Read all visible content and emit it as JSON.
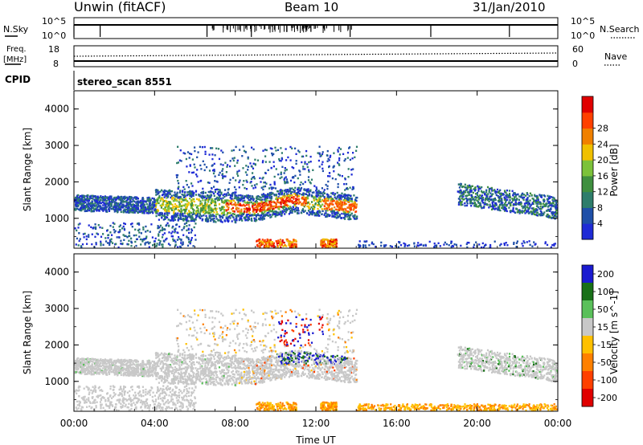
{
  "header": {
    "site": "Unwin (fitACF)",
    "beam": "Beam 10",
    "date": "31/Jan/2010"
  },
  "nsky_panel": {
    "left_label": "N.Sky",
    "right_label": "N.Search",
    "ticks_left": [
      "10^5",
      "10^0"
    ],
    "ticks_right": [
      "10^5",
      "10^0"
    ]
  },
  "freq_panel": {
    "left_label_1": "Freq.",
    "left_label_2": "[MHz]",
    "right_label": "Nave",
    "ticks_left": [
      "18",
      "8"
    ],
    "ticks_right": [
      "60",
      "0"
    ]
  },
  "cpid_panel": {
    "label": "CPID",
    "value": "stereo_scan 8551"
  },
  "chart_data": [
    {
      "type": "heatmap",
      "name": "power",
      "xlabel": "",
      "ylabel": "Slant Range [km]",
      "x_ticks": [
        "00:00",
        "04:00",
        "08:00",
        "12:00",
        "16:00",
        "20:00",
        "00:00"
      ],
      "y_ticks": [
        "1000",
        "2000",
        "3000",
        "4000"
      ],
      "xlim": [
        0,
        24
      ],
      "ylim": [
        180,
        4500
      ],
      "colorbar": {
        "label": "Power [dB]",
        "ticks": [
          "4",
          "8",
          "12",
          "16",
          "20",
          "24",
          "28"
        ],
        "range": [
          0,
          30
        ]
      },
      "regions": [
        {
          "t": [
            0.1,
            9.0
          ],
          "r": [
            1150,
            1700
          ],
          "level": "mixed-low"
        },
        {
          "t": [
            4.0,
            14.0
          ],
          "r": [
            900,
            1750
          ],
          "level": "mid"
        },
        {
          "t": [
            8.0,
            11.5
          ],
          "r": [
            1100,
            1700
          ],
          "level": "high"
        },
        {
          "t": [
            9.0,
            11.0
          ],
          "r": [
            180,
            450
          ],
          "level": "high"
        },
        {
          "t": [
            12.0,
            14.0
          ],
          "r": [
            1200,
            1600
          ],
          "level": "high"
        },
        {
          "t": [
            19.0,
            24.0
          ],
          "r": [
            1100,
            2000
          ],
          "level": "low"
        }
      ]
    },
    {
      "type": "heatmap",
      "name": "velocity",
      "xlabel": "Time UT",
      "ylabel": "Slant Range [km]",
      "x_ticks": [
        "00:00",
        "04:00",
        "08:00",
        "12:00",
        "16:00",
        "20:00",
        "00:00"
      ],
      "y_ticks": [
        "1000",
        "2000",
        "3000",
        "4000"
      ],
      "xlim": [
        0,
        24
      ],
      "ylim": [
        180,
        4500
      ],
      "colorbar": {
        "label": "Velocity [m s^-1]",
        "ticks": [
          "200",
          "100",
          "50",
          "15",
          "-15",
          "-50",
          "-100",
          "-200"
        ],
        "range": [
          -250,
          250
        ]
      }
    }
  ],
  "colors": {
    "power_scale": [
      "#1f2bd6",
      "#1f4fa8",
      "#2e7d6b",
      "#3f8f3f",
      "#7cc23a",
      "#f0c000",
      "#f08000",
      "#ff4000",
      "#e00000"
    ],
    "velocity_scale": [
      "#1a1ad0",
      "#187018",
      "#5ac05a",
      "#c8c8c8",
      "#ffc000",
      "#ff8000",
      "#ff4000",
      "#e00000"
    ],
    "ground_scatter": "#c8c8c8"
  }
}
